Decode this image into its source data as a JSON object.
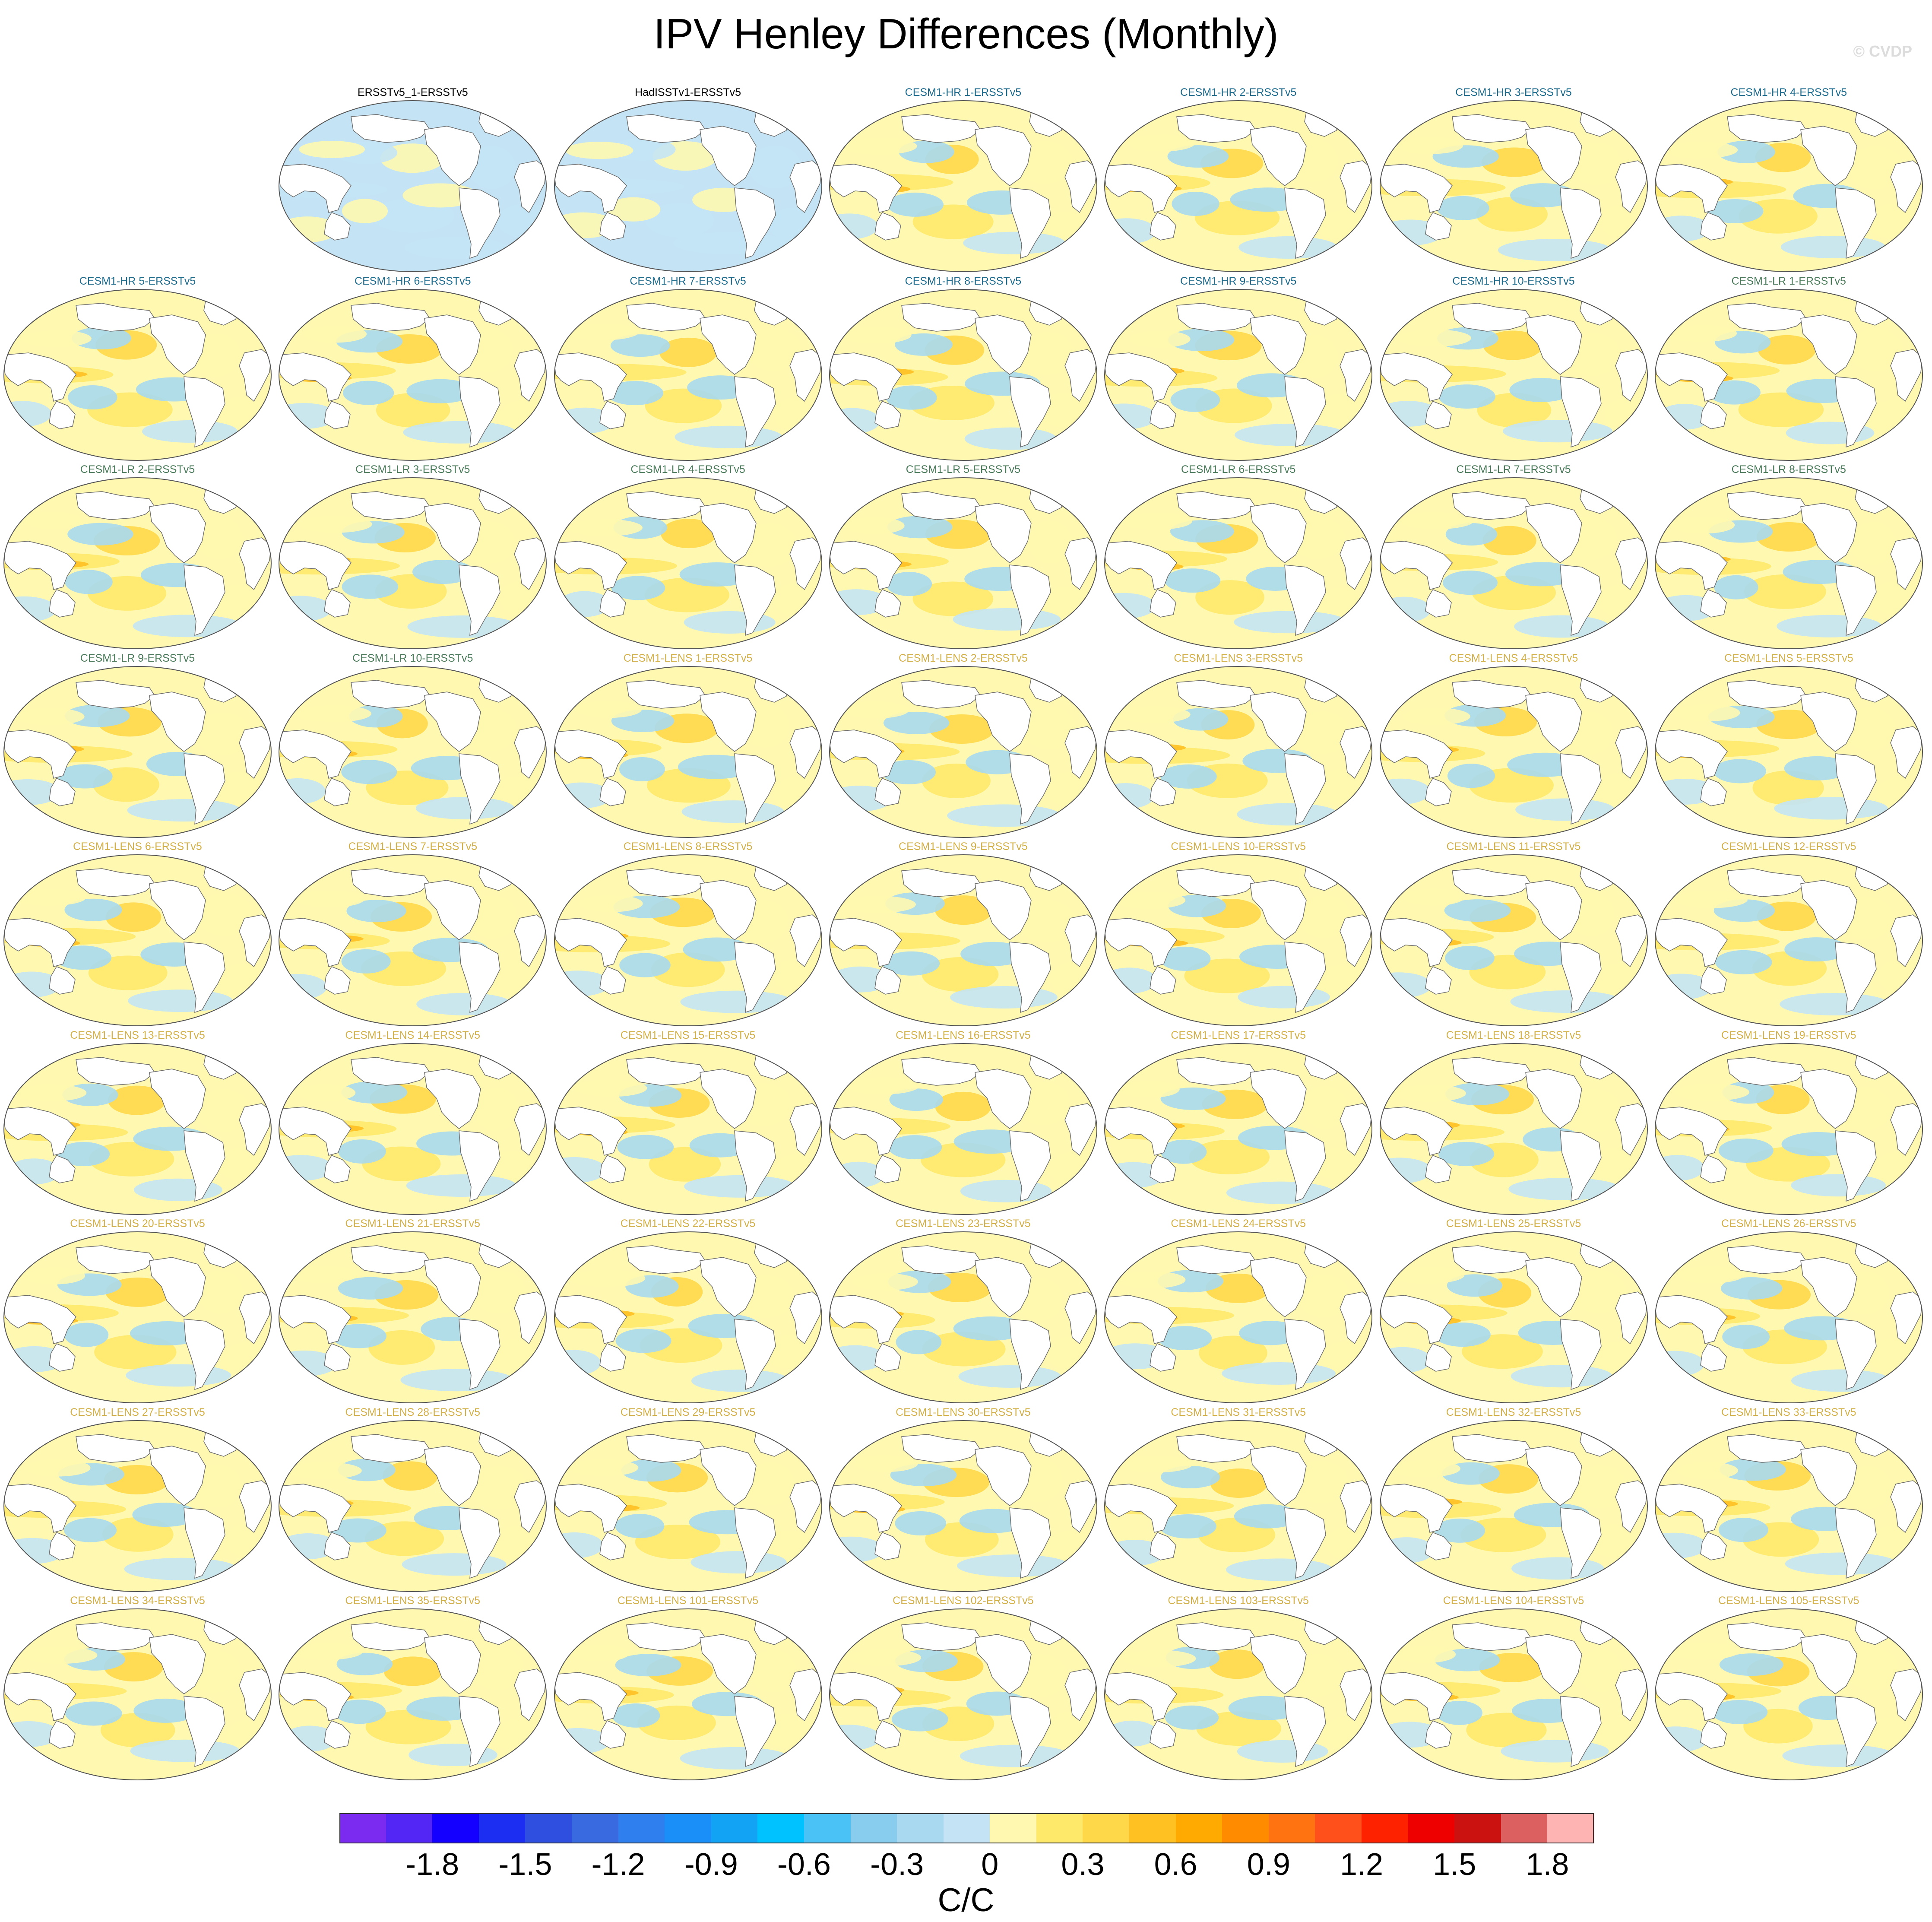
{
  "title": "IPV Henley Differences (Monthly)",
  "copyright": "© CVDP",
  "panels": [
    {
      "label": "ERSSTv5_1-ERSSTv5",
      "group": "obs"
    },
    {
      "label": "HadISSTv1-ERSSTv5",
      "group": "obs"
    },
    {
      "label": "CESM1-HR 1-ERSSTv5",
      "group": "hr"
    },
    {
      "label": "CESM1-HR 2-ERSSTv5",
      "group": "hr"
    },
    {
      "label": "CESM1-HR 3-ERSSTv5",
      "group": "hr"
    },
    {
      "label": "CESM1-HR 4-ERSSTv5",
      "group": "hr"
    },
    {
      "label": "CESM1-HR 5-ERSSTv5",
      "group": "hr"
    },
    {
      "label": "CESM1-HR 6-ERSSTv5",
      "group": "hr"
    },
    {
      "label": "CESM1-HR 7-ERSSTv5",
      "group": "hr"
    },
    {
      "label": "CESM1-HR 8-ERSSTv5",
      "group": "hr"
    },
    {
      "label": "CESM1-HR 9-ERSSTv5",
      "group": "hr"
    },
    {
      "label": "CESM1-HR 10-ERSSTv5",
      "group": "hr"
    },
    {
      "label": "CESM1-LR 1-ERSSTv5",
      "group": "lr"
    },
    {
      "label": "CESM1-LR 2-ERSSTv5",
      "group": "lr"
    },
    {
      "label": "CESM1-LR 3-ERSSTv5",
      "group": "lr"
    },
    {
      "label": "CESM1-LR 4-ERSSTv5",
      "group": "lr"
    },
    {
      "label": "CESM1-LR 5-ERSSTv5",
      "group": "lr"
    },
    {
      "label": "CESM1-LR 6-ERSSTv5",
      "group": "lr"
    },
    {
      "label": "CESM1-LR 7-ERSSTv5",
      "group": "lr"
    },
    {
      "label": "CESM1-LR 8-ERSSTv5",
      "group": "lr"
    },
    {
      "label": "CESM1-LR 9-ERSSTv5",
      "group": "lr"
    },
    {
      "label": "CESM1-LR 10-ERSSTv5",
      "group": "lr"
    },
    {
      "label": "CESM1-LENS 1-ERSSTv5",
      "group": "lens"
    },
    {
      "label": "CESM1-LENS 2-ERSSTv5",
      "group": "lens"
    },
    {
      "label": "CESM1-LENS 3-ERSSTv5",
      "group": "lens"
    },
    {
      "label": "CESM1-LENS 4-ERSSTv5",
      "group": "lens"
    },
    {
      "label": "CESM1-LENS 5-ERSSTv5",
      "group": "lens"
    },
    {
      "label": "CESM1-LENS 6-ERSSTv5",
      "group": "lens"
    },
    {
      "label": "CESM1-LENS 7-ERSSTv5",
      "group": "lens"
    },
    {
      "label": "CESM1-LENS 8-ERSSTv5",
      "group": "lens"
    },
    {
      "label": "CESM1-LENS 9-ERSSTv5",
      "group": "lens"
    },
    {
      "label": "CESM1-LENS 10-ERSSTv5",
      "group": "lens"
    },
    {
      "label": "CESM1-LENS 11-ERSSTv5",
      "group": "lens"
    },
    {
      "label": "CESM1-LENS 12-ERSSTv5",
      "group": "lens"
    },
    {
      "label": "CESM1-LENS 13-ERSSTv5",
      "group": "lens"
    },
    {
      "label": "CESM1-LENS 14-ERSSTv5",
      "group": "lens"
    },
    {
      "label": "CESM1-LENS 15-ERSSTv5",
      "group": "lens"
    },
    {
      "label": "CESM1-LENS 16-ERSSTv5",
      "group": "lens"
    },
    {
      "label": "CESM1-LENS 17-ERSSTv5",
      "group": "lens"
    },
    {
      "label": "CESM1-LENS 18-ERSSTv5",
      "group": "lens"
    },
    {
      "label": "CESM1-LENS 19-ERSSTv5",
      "group": "lens"
    },
    {
      "label": "CESM1-LENS 20-ERSSTv5",
      "group": "lens"
    },
    {
      "label": "CESM1-LENS 21-ERSSTv5",
      "group": "lens"
    },
    {
      "label": "CESM1-LENS 22-ERSSTv5",
      "group": "lens"
    },
    {
      "label": "CESM1-LENS 23-ERSSTv5",
      "group": "lens"
    },
    {
      "label": "CESM1-LENS 24-ERSSTv5",
      "group": "lens"
    },
    {
      "label": "CESM1-LENS 25-ERSSTv5",
      "group": "lens"
    },
    {
      "label": "CESM1-LENS 26-ERSSTv5",
      "group": "lens"
    },
    {
      "label": "CESM1-LENS 27-ERSSTv5",
      "group": "lens"
    },
    {
      "label": "CESM1-LENS 28-ERSSTv5",
      "group": "lens"
    },
    {
      "label": "CESM1-LENS 29-ERSSTv5",
      "group": "lens"
    },
    {
      "label": "CESM1-LENS 30-ERSSTv5",
      "group": "lens"
    },
    {
      "label": "CESM1-LENS 31-ERSSTv5",
      "group": "lens"
    },
    {
      "label": "CESM1-LENS 32-ERSSTv5",
      "group": "lens"
    },
    {
      "label": "CESM1-LENS 33-ERSSTv5",
      "group": "lens"
    },
    {
      "label": "CESM1-LENS 34-ERSSTv5",
      "group": "lens"
    },
    {
      "label": "CESM1-LENS 35-ERSSTv5",
      "group": "lens"
    },
    {
      "label": "CESM1-LENS 101-ERSSTv5",
      "group": "lens"
    },
    {
      "label": "CESM1-LENS 102-ERSSTv5",
      "group": "lens"
    },
    {
      "label": "CESM1-LENS 103-ERSSTv5",
      "group": "lens"
    },
    {
      "label": "CESM1-LENS 104-ERSSTv5",
      "group": "lens"
    },
    {
      "label": "CESM1-LENS 105-ERSSTv5",
      "group": "lens"
    }
  ],
  "group_colors": {
    "obs": "#000000",
    "hr": "#1f6b8c",
    "lr": "#4a7a5a",
    "lens": "#d2b04a"
  },
  "colorbar": {
    "colors": [
      "#7b2bf0",
      "#5426f5",
      "#1300ff",
      "#1d2ef3",
      "#2f4fe0",
      "#3a6ae0",
      "#2f7fef",
      "#1a8ff7",
      "#12a3f5",
      "#00c2ff",
      "#4bc2f5",
      "#88ccee",
      "#a8d9f0",
      "#c4e4f5",
      "#fff8b0",
      "#ffe96a",
      "#ffd84a",
      "#ffc022",
      "#ffaa00",
      "#ff8c00",
      "#ff7410",
      "#ff4f1a",
      "#ff2200",
      "#ee0000",
      "#cc1111",
      "#dd6060",
      "#ffb4b4"
    ],
    "ticks": [
      "-1.8",
      "-1.5",
      "-1.2",
      "-0.9",
      "-0.6",
      "-0.3",
      "0",
      "0.3",
      "0.6",
      "0.9",
      "1.2",
      "1.5",
      "1.8"
    ],
    "units": "C/C"
  }
}
